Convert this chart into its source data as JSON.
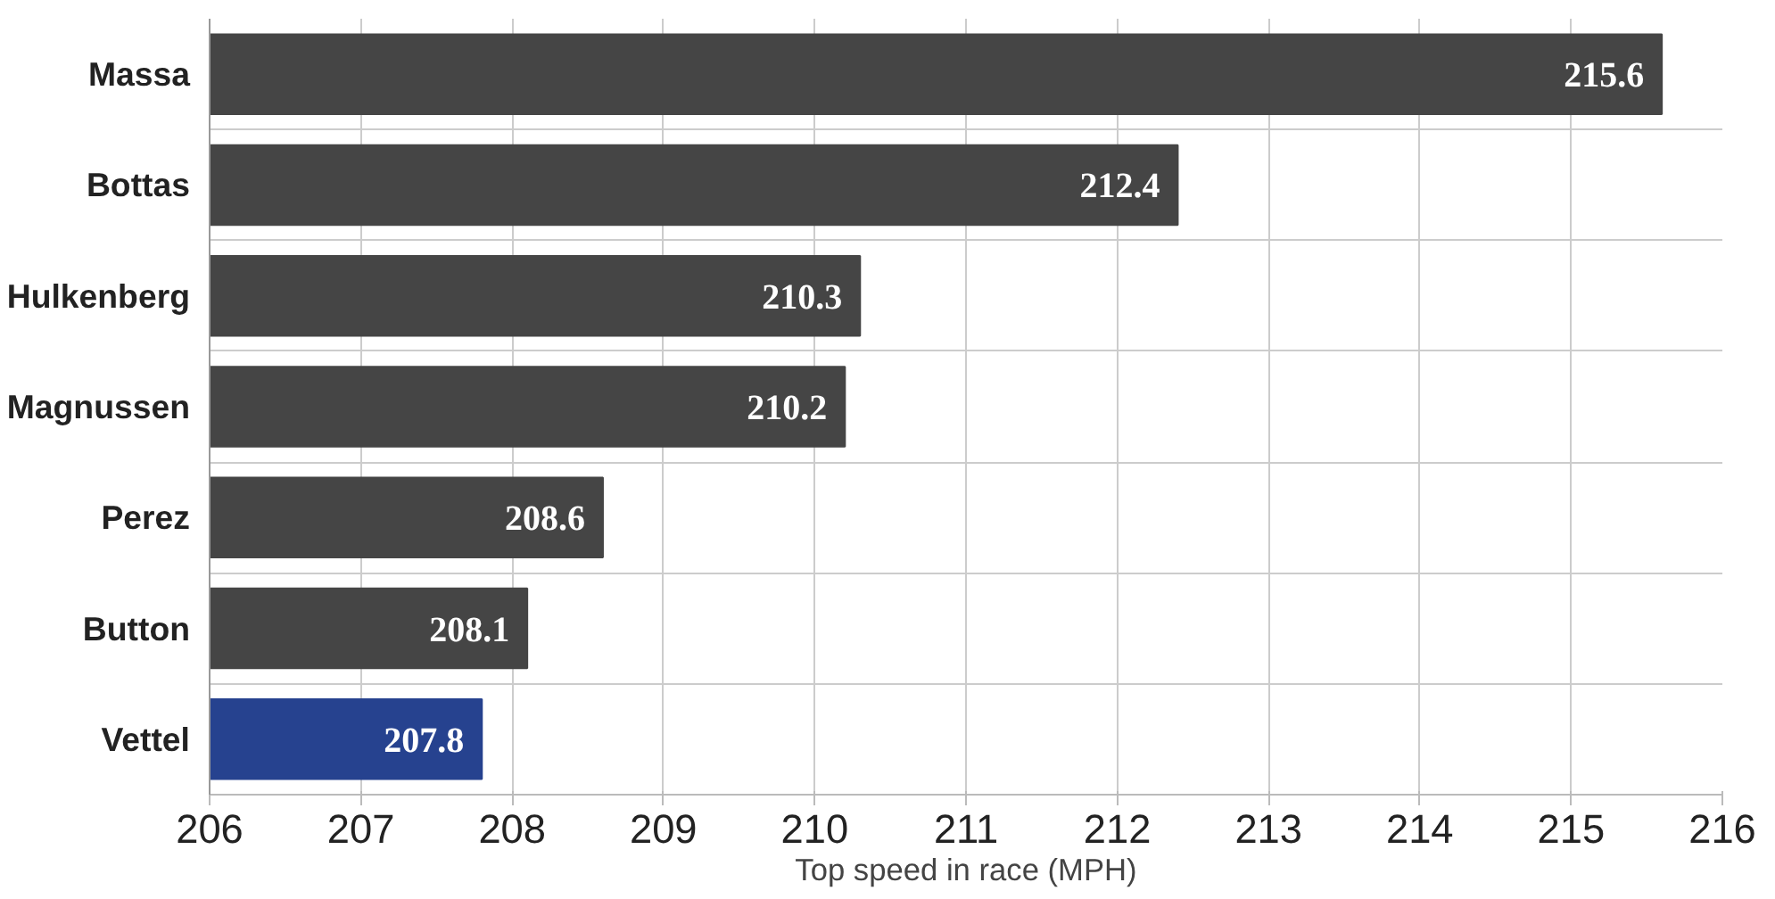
{
  "chart_data": {
    "type": "bar",
    "orientation": "horizontal",
    "xlabel": "Top speed in race (MPH)",
    "categories": [
      "Massa",
      "Bottas",
      "Hulkenberg",
      "Magnussen",
      "Perez",
      "Button",
      "Vettel"
    ],
    "values": [
      215.6,
      212.4,
      210.3,
      210.2,
      208.6,
      208.1,
      207.8
    ],
    "colors": [
      "#454545",
      "#454545",
      "#454545",
      "#454545",
      "#454545",
      "#454545",
      "#26428f"
    ],
    "xlim": [
      206,
      216
    ],
    "xticks": [
      206,
      207,
      208,
      209,
      210,
      211,
      212,
      213,
      214,
      215,
      216
    ],
    "grid": true,
    "data_labels": true
  }
}
